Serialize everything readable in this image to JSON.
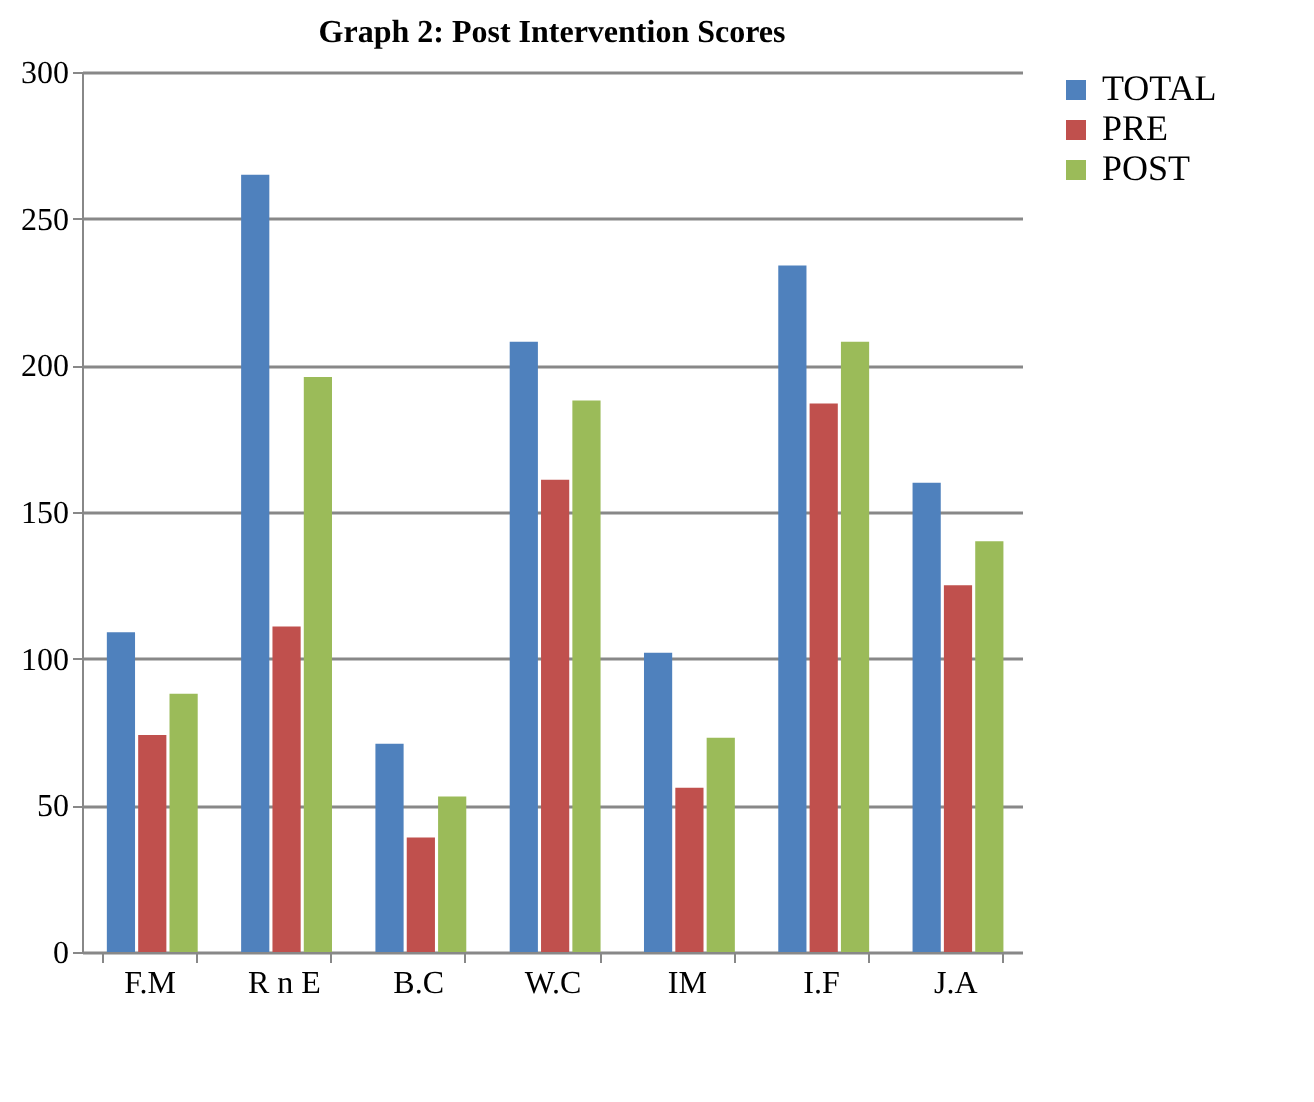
{
  "chart_data": {
    "type": "bar",
    "title": "Graph 2: Post Intervention Scores",
    "categories": [
      "F.M",
      "R n E",
      "B.C",
      "W.C",
      "IM",
      "I.F",
      "J.A"
    ],
    "series": [
      {
        "name": "TOTAL",
        "color": "#4f81bd",
        "values": [
          109,
          265,
          71,
          208,
          102,
          234,
          160
        ]
      },
      {
        "name": "PRE",
        "color": "#c0504d",
        "values": [
          74,
          111,
          39,
          161,
          56,
          187,
          125
        ]
      },
      {
        "name": "POST",
        "color": "#9bbb59",
        "values": [
          88,
          196,
          53,
          188,
          73,
          208,
          140
        ]
      }
    ],
    "ylim": [
      0,
      300
    ],
    "yticks": [
      0,
      50,
      100,
      150,
      200,
      250,
      300
    ],
    "grid": "y",
    "legend": "right"
  }
}
